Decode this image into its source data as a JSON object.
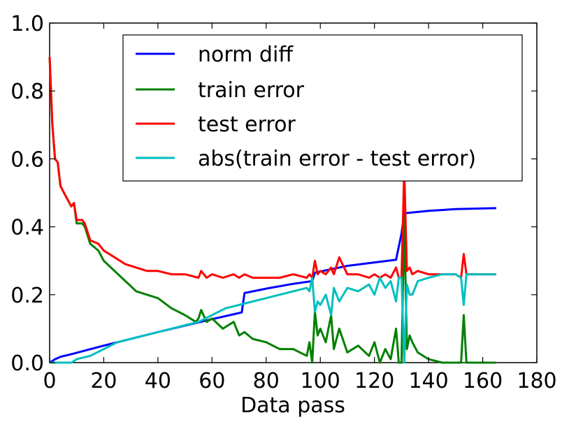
{
  "chart_data": {
    "type": "line",
    "title": "",
    "xlabel": "Data pass",
    "ylabel": "",
    "xlim": [
      0,
      180
    ],
    "ylim": [
      0,
      1.0
    ],
    "x_ticks": [
      0,
      20,
      40,
      60,
      80,
      100,
      120,
      140,
      160,
      180
    ],
    "x_tick_labels": [
      "0",
      "20",
      "40",
      "60",
      "80",
      "100",
      "120",
      "140",
      "160",
      "180"
    ],
    "y_ticks": [
      0,
      0.2,
      0.4,
      0.6,
      0.8,
      1.0
    ],
    "y_tick_labels": [
      "0.0",
      "0.2",
      "0.4",
      "0.6",
      "0.8",
      "1.0"
    ],
    "grid": false,
    "legend_position": "top-right",
    "series": [
      {
        "name": "norm diff",
        "color": "#0000ff",
        "x": [
          0,
          2,
          4,
          8,
          20,
          40,
          60,
          71,
          72,
          80,
          90,
          97,
          98,
          110,
          120,
          128,
          130,
          131,
          140,
          150,
          165
        ],
        "y": [
          0.0,
          0.01,
          0.017,
          0.025,
          0.05,
          0.09,
          0.128,
          0.148,
          0.205,
          0.218,
          0.232,
          0.24,
          0.265,
          0.285,
          0.295,
          0.303,
          0.38,
          0.44,
          0.447,
          0.452,
          0.455
        ]
      },
      {
        "name": "train error",
        "color": "#008000",
        "x": [
          0,
          1,
          2,
          3,
          4,
          6,
          8,
          9,
          10,
          12,
          13,
          15,
          18,
          20,
          24,
          28,
          32,
          36,
          40,
          45,
          50,
          54,
          55,
          56,
          58,
          60,
          64,
          68,
          70,
          72,
          75,
          80,
          85,
          90,
          95,
          96,
          97,
          98,
          99,
          100,
          102,
          104,
          105,
          107,
          110,
          114,
          118,
          120,
          122,
          124,
          126,
          128,
          129,
          130,
          131,
          132,
          133,
          134,
          136,
          140,
          145,
          150,
          152,
          153,
          154,
          155,
          160,
          165
        ],
        "y": [
          0.9,
          0.7,
          0.6,
          0.59,
          0.52,
          0.49,
          0.46,
          0.47,
          0.41,
          0.41,
          0.4,
          0.35,
          0.33,
          0.3,
          0.27,
          0.24,
          0.21,
          0.2,
          0.19,
          0.16,
          0.14,
          0.12,
          0.13,
          0.155,
          0.12,
          0.13,
          0.1,
          0.12,
          0.08,
          0.09,
          0.07,
          0.06,
          0.04,
          0.04,
          0.02,
          0.06,
          0.0,
          0.15,
          0.08,
          0.1,
          0.06,
          0.14,
          0.04,
          0.1,
          0.03,
          0.05,
          0.02,
          0.06,
          0.0,
          0.04,
          0.01,
          0.1,
          0.0,
          0.0,
          0.43,
          0.04,
          0.08,
          0.06,
          0.03,
          0.01,
          0.0,
          0.0,
          0.0,
          0.14,
          0.0,
          0.0,
          0.0,
          0.0
        ]
      },
      {
        "name": "test error",
        "color": "#ff0000",
        "x": [
          0,
          1,
          2,
          3,
          4,
          6,
          8,
          9,
          10,
          12,
          13,
          15,
          18,
          20,
          24,
          28,
          32,
          36,
          40,
          45,
          50,
          55,
          56,
          58,
          60,
          64,
          68,
          70,
          72,
          75,
          80,
          85,
          90,
          95,
          96,
          97,
          98,
          99,
          100,
          102,
          104,
          105,
          107,
          110,
          114,
          118,
          120,
          122,
          124,
          126,
          128,
          129,
          130,
          131,
          132,
          133,
          134,
          136,
          140,
          145,
          150,
          152,
          153,
          154,
          155,
          160,
          165
        ],
        "y": [
          0.9,
          0.7,
          0.6,
          0.59,
          0.52,
          0.49,
          0.46,
          0.47,
          0.42,
          0.42,
          0.41,
          0.36,
          0.35,
          0.33,
          0.31,
          0.29,
          0.28,
          0.27,
          0.27,
          0.26,
          0.26,
          0.25,
          0.27,
          0.25,
          0.26,
          0.25,
          0.26,
          0.25,
          0.26,
          0.25,
          0.25,
          0.25,
          0.26,
          0.25,
          0.26,
          0.25,
          0.3,
          0.26,
          0.27,
          0.26,
          0.28,
          0.26,
          0.31,
          0.26,
          0.26,
          0.25,
          0.26,
          0.25,
          0.26,
          0.25,
          0.28,
          0.25,
          0.25,
          0.57,
          0.27,
          0.28,
          0.26,
          0.27,
          0.26,
          0.26,
          0.26,
          0.25,
          0.32,
          0.26,
          0.26,
          0.26,
          0.26
        ]
      },
      {
        "name": "abs(train error - test error)",
        "color": "#00bfbf",
        "x": [
          0,
          1,
          2,
          4,
          6,
          8,
          10,
          15,
          20,
          25,
          30,
          35,
          40,
          45,
          50,
          55,
          60,
          65,
          70,
          75,
          80,
          85,
          90,
          95,
          96,
          97,
          98,
          99,
          100,
          102,
          104,
          105,
          107,
          110,
          114,
          118,
          120,
          122,
          124,
          126,
          128,
          129,
          130,
          131,
          132,
          133,
          134,
          136,
          140,
          145,
          150,
          152,
          153,
          154,
          155,
          160,
          165
        ],
        "y": [
          0.0,
          0.0,
          0.0,
          0.0,
          0.0,
          0.0,
          0.01,
          0.02,
          0.04,
          0.06,
          0.07,
          0.08,
          0.09,
          0.1,
          0.11,
          0.12,
          0.14,
          0.16,
          0.17,
          0.18,
          0.19,
          0.2,
          0.21,
          0.22,
          0.21,
          0.25,
          0.15,
          0.18,
          0.17,
          0.2,
          0.14,
          0.22,
          0.18,
          0.22,
          0.21,
          0.23,
          0.2,
          0.25,
          0.22,
          0.24,
          0.18,
          0.25,
          0.25,
          0.0,
          0.23,
          0.2,
          0.2,
          0.24,
          0.25,
          0.26,
          0.26,
          0.25,
          0.17,
          0.26,
          0.26,
          0.26,
          0.26
        ]
      }
    ]
  }
}
